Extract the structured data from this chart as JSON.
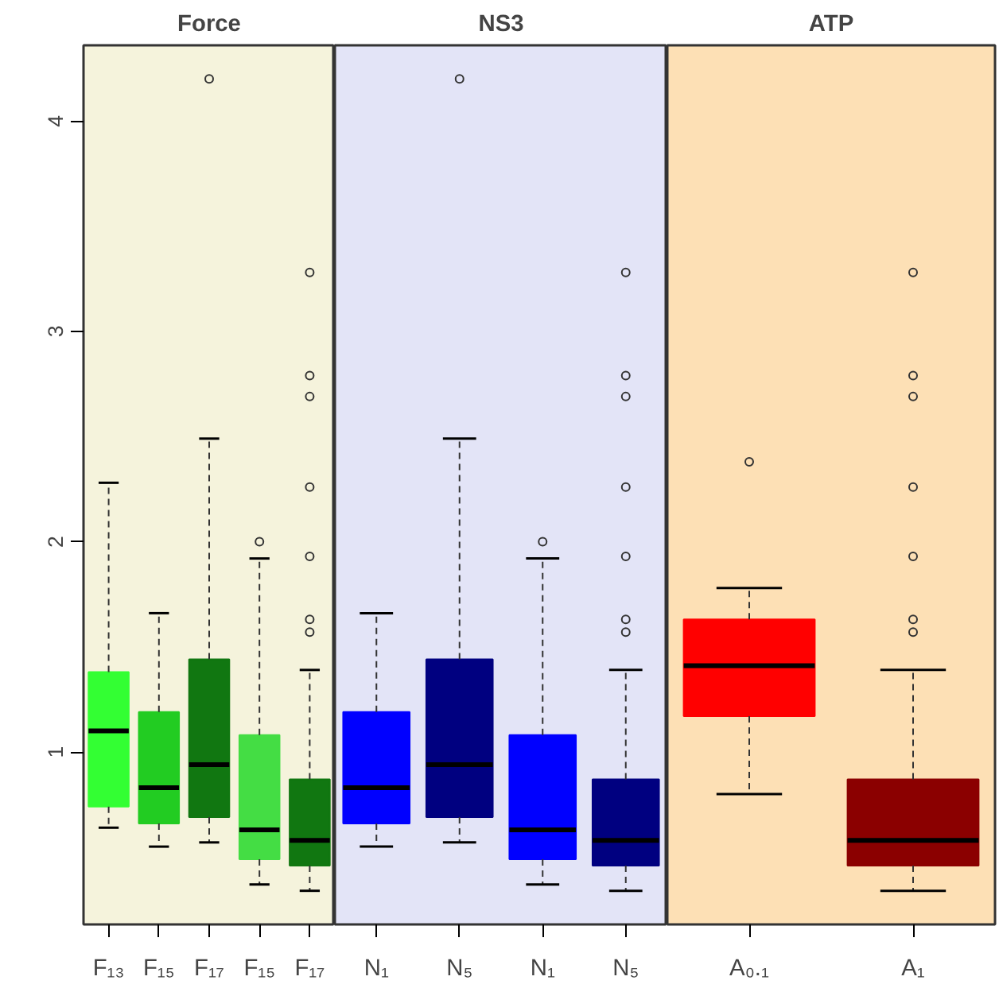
{
  "chart_data": [
    {
      "type": "box",
      "title": "Force",
      "categories": [
        "F₁₃",
        "F₁₅",
        "F₁₇",
        "F₁₅",
        "F₁₇"
      ],
      "colors": [
        "#33ff33",
        "#22cc22",
        "#117711",
        "#44dd44",
        "#117711"
      ],
      "ylim": [
        0.18,
        4.36
      ],
      "yticks": [
        1,
        2,
        3,
        4
      ],
      "boxes": [
        {
          "low": 0.64,
          "q1": 0.74,
          "median": 1.1,
          "q3": 1.38,
          "high": 2.28
        },
        {
          "low": 0.55,
          "q1": 0.66,
          "median": 0.83,
          "q3": 1.19,
          "high": 1.66
        },
        {
          "low": 0.57,
          "q1": 0.69,
          "median": 0.94,
          "q3": 1.44,
          "high": 2.49,
          "outliers": [
            4.2
          ]
        },
        {
          "low": 0.37,
          "q1": 0.49,
          "median": 0.63,
          "q3": 1.08,
          "high": 1.92,
          "outliers": [
            2.0
          ]
        },
        {
          "low": 0.34,
          "q1": 0.46,
          "median": 0.58,
          "q3": 0.87,
          "high": 1.39,
          "outliers": [
            3.28,
            2.79,
            2.69,
            2.26,
            1.93,
            1.63,
            1.57
          ]
        }
      ]
    },
    {
      "type": "box",
      "title": "NS3",
      "categories": [
        "N₁",
        "N₅",
        "N₁",
        "N₅"
      ],
      "colors": [
        "#0000ff",
        "#000080",
        "#0000ff",
        "#000080"
      ],
      "ylim": [
        0.18,
        4.36
      ],
      "yticks": [
        1,
        2,
        3,
        4
      ],
      "tick_labels": "x",
      "boxes": [
        {
          "low": 0.55,
          "q1": 0.66,
          "median": 0.83,
          "q3": 1.19,
          "high": 1.66
        },
        {
          "low": 0.57,
          "q1": 0.69,
          "median": 0.94,
          "q3": 1.44,
          "high": 2.49,
          "outliers": [
            4.2
          ]
        },
        {
          "low": 0.37,
          "q1": 0.49,
          "median": 0.63,
          "q3": 1.08,
          "high": 1.92,
          "outliers": [
            2.0
          ]
        },
        {
          "low": 0.34,
          "q1": 0.46,
          "median": 0.58,
          "q3": 0.87,
          "high": 1.39,
          "outliers": [
            3.28,
            2.79,
            2.69,
            2.26,
            1.93,
            1.63,
            1.57
          ]
        }
      ]
    },
    {
      "type": "box",
      "title": "ATP",
      "categories": [
        "A₀.₁",
        "A₁"
      ],
      "colors": [
        "#ff0000",
        "#8b0000"
      ],
      "ylim": [
        0.18,
        4.36
      ],
      "yticks": [
        1,
        2,
        3,
        4
      ],
      "tick_labels": "x",
      "boxes": [
        {
          "low": 0.8,
          "q1": 1.17,
          "median": 1.41,
          "q3": 1.63,
          "high": 1.78,
          "outliers": [
            2.38
          ]
        },
        {
          "low": 0.34,
          "q1": 0.46,
          "median": 0.58,
          "q3": 0.87,
          "high": 1.39,
          "outliers": [
            3.28,
            2.79,
            2.69,
            2.26,
            1.93,
            1.63,
            1.57
          ]
        }
      ]
    }
  ]
}
